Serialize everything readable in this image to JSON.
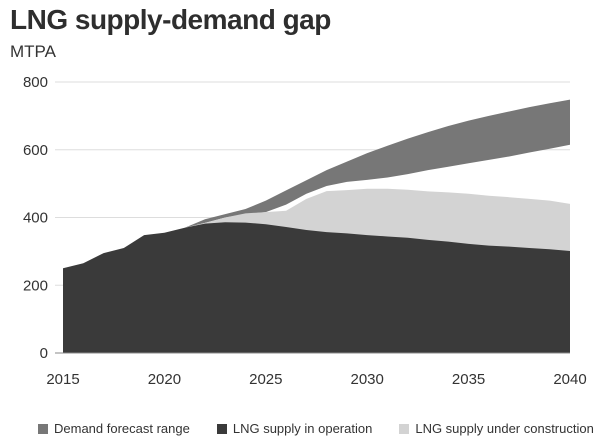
{
  "chart_data": {
    "type": "area",
    "title": "LNG supply-demand gap",
    "ylabel": "MTPA",
    "xlabel": "",
    "xlim": [
      2015,
      2040
    ],
    "ylim": [
      0,
      800
    ],
    "x_ticks": [
      "2015",
      "2020",
      "2025",
      "2030",
      "2035",
      "2040"
    ],
    "y_ticks": [
      "0",
      "200",
      "400",
      "600",
      "800"
    ],
    "grid": true,
    "legend_position": "bottom",
    "series": [
      {
        "name": "LNG supply in operation",
        "color": "#3a3a3a",
        "points": [
          [
            2015,
            250
          ],
          [
            2016,
            265
          ],
          [
            2017,
            295
          ],
          [
            2018,
            310
          ],
          [
            2019,
            348
          ],
          [
            2020,
            355
          ],
          [
            2021,
            370
          ],
          [
            2022,
            382
          ],
          [
            2023,
            386
          ],
          [
            2024,
            385
          ],
          [
            2025,
            380
          ],
          [
            2026,
            372
          ],
          [
            2027,
            363
          ],
          [
            2028,
            357
          ],
          [
            2029,
            353
          ],
          [
            2030,
            348
          ],
          [
            2031,
            344
          ],
          [
            2032,
            340
          ],
          [
            2033,
            334
          ],
          [
            2034,
            329
          ],
          [
            2035,
            322
          ],
          [
            2036,
            317
          ],
          [
            2037,
            314
          ],
          [
            2038,
            310
          ],
          [
            2039,
            306
          ],
          [
            2040,
            301
          ]
        ]
      },
      {
        "name": "LNG supply under construction",
        "color": "#d3d3d3",
        "points": [
          [
            2021,
            370
          ],
          [
            2022,
            384
          ],
          [
            2023,
            400
          ],
          [
            2024,
            412
          ],
          [
            2025,
            416
          ],
          [
            2026,
            420
          ],
          [
            2027,
            455
          ],
          [
            2028,
            478
          ],
          [
            2029,
            481
          ],
          [
            2030,
            485
          ],
          [
            2031,
            485
          ],
          [
            2032,
            482
          ],
          [
            2033,
            477
          ],
          [
            2034,
            474
          ],
          [
            2035,
            470
          ],
          [
            2036,
            464
          ],
          [
            2037,
            460
          ],
          [
            2038,
            455
          ],
          [
            2039,
            450
          ],
          [
            2040,
            440
          ]
        ]
      },
      {
        "name": "Demand forecast range",
        "color": "#777777",
        "low": [
          [
            2021,
            370
          ],
          [
            2022,
            384
          ],
          [
            2023,
            400
          ],
          [
            2024,
            410
          ],
          [
            2025,
            416
          ],
          [
            2026,
            438
          ],
          [
            2027,
            470
          ],
          [
            2028,
            493
          ],
          [
            2029,
            505
          ],
          [
            2030,
            511
          ],
          [
            2031,
            518
          ],
          [
            2032,
            528
          ],
          [
            2033,
            540
          ],
          [
            2034,
            550
          ],
          [
            2035,
            560
          ],
          [
            2036,
            570
          ],
          [
            2037,
            580
          ],
          [
            2038,
            592
          ],
          [
            2039,
            603
          ],
          [
            2040,
            615
          ]
        ],
        "high": [
          [
            2021,
            370
          ],
          [
            2022,
            395
          ],
          [
            2023,
            410
          ],
          [
            2024,
            425
          ],
          [
            2025,
            450
          ],
          [
            2026,
            480
          ],
          [
            2027,
            510
          ],
          [
            2028,
            540
          ],
          [
            2029,
            565
          ],
          [
            2030,
            590
          ],
          [
            2031,
            612
          ],
          [
            2032,
            633
          ],
          [
            2033,
            652
          ],
          [
            2034,
            670
          ],
          [
            2035,
            686
          ],
          [
            2036,
            700
          ],
          [
            2037,
            713
          ],
          [
            2038,
            726
          ],
          [
            2039,
            737
          ],
          [
            2040,
            748
          ]
        ]
      }
    ]
  },
  "legend": {
    "items": [
      {
        "label": "Demand forecast range",
        "color": "#777777"
      },
      {
        "label": "LNG supply in operation",
        "color": "#3a3a3a"
      },
      {
        "label": "LNG supply under construction",
        "color": "#d3d3d3"
      }
    ]
  }
}
